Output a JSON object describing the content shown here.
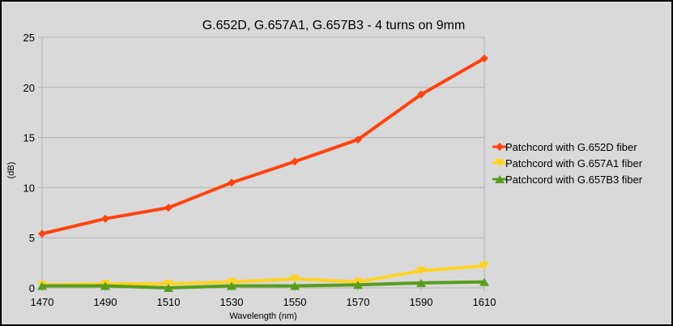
{
  "chart_data": {
    "type": "line",
    "title": "G.652D, G.657A1, G.657B3 - 4 turns on 9mm",
    "xlabel": "Wavelength (nm)",
    "ylabel": "(dB)",
    "categories": [
      "1470",
      "1490",
      "1510",
      "1530",
      "1550",
      "1570",
      "1590",
      "1610"
    ],
    "ylim": [
      0,
      25
    ],
    "yticks": [
      "0",
      "5",
      "10",
      "15",
      "20",
      "25"
    ],
    "grid": "horizontal",
    "legend": "right",
    "series": [
      {
        "name": "Patchcord with G.652D fiber",
        "color": "#ff420e",
        "marker": "diamond",
        "values": [
          5.4,
          6.9,
          8.0,
          10.5,
          12.6,
          14.8,
          19.3,
          22.9
        ]
      },
      {
        "name": "Patchcord with G.657A1 fiber",
        "color": "#ffd320",
        "marker": "triangle-down",
        "values": [
          0.3,
          0.4,
          0.4,
          0.6,
          0.9,
          0.6,
          1.7,
          2.2
        ]
      },
      {
        "name": "Patchcord with G.657B3 fiber",
        "color": "#579d1c",
        "marker": "triangle-up",
        "values": [
          0.2,
          0.2,
          0.0,
          0.2,
          0.2,
          0.3,
          0.5,
          0.6
        ]
      }
    ]
  }
}
